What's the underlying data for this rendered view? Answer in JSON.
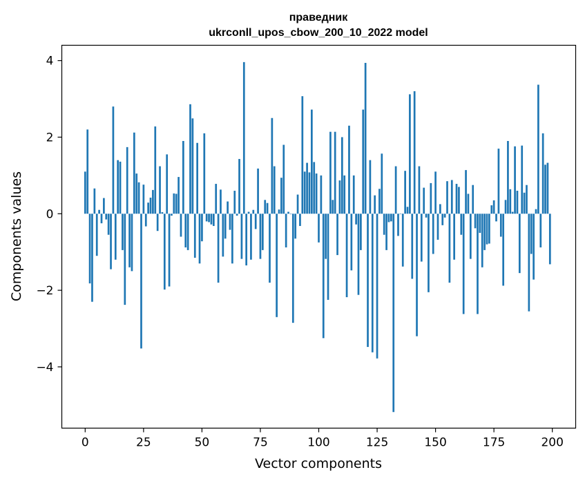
{
  "chart_data": {
    "type": "bar",
    "title": "праведник",
    "subtitle": "ukrconll_upos_cbow_200_10_2022 model",
    "xlabel": "Vector components",
    "ylabel": "Components values",
    "xlim": [
      -10,
      210
    ],
    "ylim": [
      -5.6,
      4.4
    ],
    "xticks": [
      0,
      25,
      50,
      75,
      100,
      125,
      150,
      175,
      200
    ],
    "yticks": [
      -4,
      -2,
      0,
      2,
      4
    ],
    "xtick_labels": [
      "0",
      "25",
      "50",
      "75",
      "100",
      "125",
      "150",
      "175",
      "200"
    ],
    "ytick_labels": [
      "−4",
      "−2",
      "0",
      "2",
      "4"
    ],
    "grid": false,
    "bar_color": "#1f77b4",
    "values": [
      1.1,
      2.2,
      -1.82,
      -2.3,
      0.66,
      -1.1,
      0.1,
      -0.25,
      0.41,
      -0.15,
      -0.55,
      -1.45,
      2.8,
      -1.2,
      1.4,
      1.36,
      -0.95,
      -2.38,
      1.74,
      -1.4,
      -1.5,
      2.12,
      1.05,
      0.82,
      -3.52,
      0.76,
      -0.33,
      0.29,
      0.42,
      0.62,
      2.28,
      -0.45,
      1.24,
      0.04,
      -1.98,
      1.55,
      -1.9,
      -0.05,
      0.53,
      0.52,
      0.96,
      -0.6,
      1.9,
      -0.88,
      -0.95,
      2.86,
      2.49,
      -1.15,
      1.85,
      -1.3,
      -0.72,
      2.1,
      -0.2,
      -0.22,
      -0.28,
      -0.32,
      0.78,
      -1.8,
      0.63,
      -1.12,
      -0.65,
      0.32,
      -0.42,
      -1.3,
      0.6,
      -0.05,
      1.43,
      -1.18,
      3.96,
      -1.35,
      0.05,
      -1.2,
      0.1,
      -0.4,
      1.18,
      -1.18,
      -0.95,
      0.36,
      0.28,
      -1.8,
      2.5,
      1.24,
      -2.7,
      0.11,
      0.94,
      1.8,
      -0.88,
      0.05,
      0.0,
      -2.85,
      -0.65,
      0.5,
      -0.32,
      3.07,
      1.1,
      1.33,
      1.08,
      2.72,
      1.35,
      1.05,
      -0.75,
      1.0,
      -3.25,
      -1.18,
      -2.25,
      2.14,
      0.36,
      2.14,
      -1.08,
      0.87,
      2.0,
      1.0,
      -2.18,
      2.3,
      -1.48,
      1.0,
      -0.28,
      -2.12,
      -0.95,
      2.72,
      3.94,
      -3.48,
      1.4,
      -3.62,
      0.48,
      -3.78,
      0.65,
      1.57,
      -0.55,
      -0.95,
      -0.22,
      -0.2,
      -5.18,
      1.24,
      -0.58,
      0.0,
      -1.38,
      1.12,
      0.18,
      3.12,
      -1.7,
      3.2,
      -3.2,
      1.24,
      -1.25,
      0.68,
      -0.1,
      -2.05,
      0.8,
      -1.05,
      1.1,
      -0.68,
      0.25,
      -0.3,
      -0.1,
      0.85,
      -1.8,
      0.88,
      -1.2,
      0.78,
      0.7,
      -0.55,
      -2.62,
      1.14,
      0.52,
      -1.18,
      0.75,
      -0.38,
      -2.62,
      -0.5,
      -1.4,
      -0.95,
      -0.8,
      -0.78,
      0.22,
      0.35,
      -0.2,
      1.7,
      -0.6,
      -1.88,
      0.36,
      1.9,
      0.64,
      0.05,
      1.76,
      0.6,
      -1.55,
      1.78,
      0.55,
      0.75,
      -2.55,
      -1.05,
      -1.72,
      0.12,
      3.37,
      -0.88,
      2.1,
      1.28,
      1.33,
      -1.32
    ]
  }
}
